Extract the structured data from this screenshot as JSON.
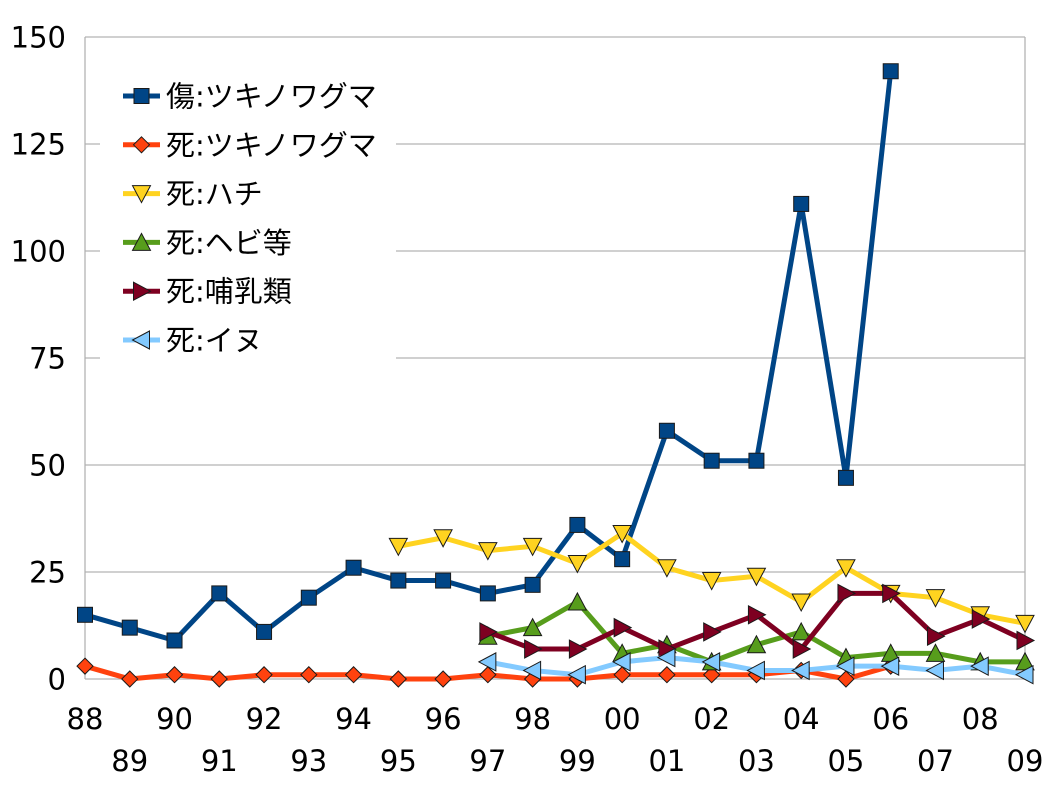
{
  "chart_data": {
    "type": "line",
    "categories": [
      "88",
      "89",
      "90",
      "91",
      "92",
      "93",
      "94",
      "95",
      "96",
      "97",
      "98",
      "99",
      "00",
      "01",
      "02",
      "03",
      "04",
      "05",
      "06",
      "07",
      "08",
      "09"
    ],
    "ylim": [
      0,
      150
    ],
    "yticks": [
      0,
      25,
      50,
      75,
      100,
      125,
      150
    ],
    "grid": {
      "horizontal": true,
      "vertical": false
    },
    "legend": {
      "placement": "top-left"
    },
    "colors": {
      "grid": "#b3b3b3",
      "background": "#ffffff",
      "text": "#000000"
    },
    "series": [
      {
        "name": "傷:ツキノワグマ",
        "color": "#004586",
        "marker": "square",
        "values": [
          15,
          12,
          9,
          20,
          11,
          19,
          26,
          23,
          23,
          20,
          22,
          36,
          28,
          58,
          51,
          51,
          111,
          47,
          142,
          null,
          null,
          null
        ]
      },
      {
        "name": "死:ツキノワグマ",
        "color": "#ff420e",
        "marker": "diamond",
        "values": [
          3,
          0,
          1,
          0,
          1,
          1,
          1,
          0,
          0,
          1,
          0,
          0,
          1,
          1,
          1,
          1,
          2,
          0,
          3,
          null,
          null,
          null
        ]
      },
      {
        "name": "死:ハチ",
        "color": "#ffd320",
        "marker": "triangle-down",
        "values": [
          null,
          null,
          null,
          null,
          null,
          null,
          null,
          31,
          33,
          30,
          31,
          27,
          34,
          26,
          23,
          24,
          18,
          26,
          20,
          19,
          15,
          13
        ]
      },
      {
        "name": "死:ヘビ等",
        "color": "#579d1c",
        "marker": "triangle-up",
        "values": [
          null,
          null,
          null,
          null,
          null,
          null,
          null,
          null,
          null,
          10,
          12,
          18,
          6,
          8,
          4,
          8,
          11,
          5,
          6,
          6,
          4,
          4
        ]
      },
      {
        "name": "死:哺乳類",
        "color": "#7e0021",
        "marker": "triangle-right",
        "values": [
          null,
          null,
          null,
          null,
          null,
          null,
          null,
          null,
          null,
          11,
          7,
          7,
          12,
          7,
          11,
          15,
          7,
          20,
          20,
          10,
          14,
          9
        ]
      },
      {
        "name": "死:イヌ",
        "color": "#83caff",
        "marker": "triangle-left",
        "values": [
          null,
          null,
          null,
          null,
          null,
          null,
          null,
          null,
          null,
          4,
          2,
          1,
          4,
          5,
          4,
          2,
          2,
          3,
          3,
          2,
          3,
          1
        ]
      }
    ]
  }
}
